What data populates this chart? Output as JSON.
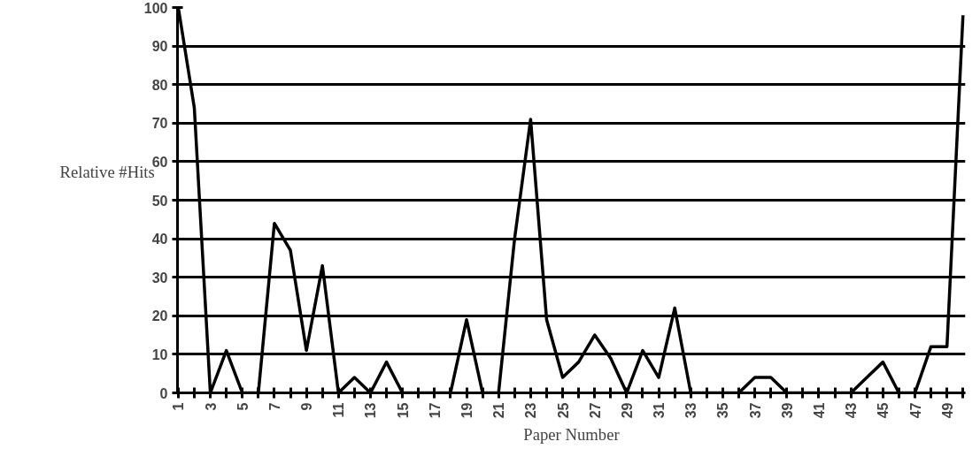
{
  "chart_data": {
    "type": "line",
    "xlabel": "Paper Number",
    "ylabel": "Relative #Hits",
    "categories": [
      "1",
      null,
      "3",
      null,
      "5",
      null,
      "7",
      null,
      "9",
      null,
      "11",
      null,
      "13",
      null,
      "15",
      null,
      "17",
      null,
      "19",
      null,
      "21",
      null,
      "23",
      null,
      "25",
      null,
      "27",
      null,
      "29",
      null,
      "31",
      null,
      "33",
      null,
      "35",
      null,
      "37",
      null,
      "39",
      null,
      "41",
      null,
      "43",
      null,
      "45",
      null,
      "47",
      null,
      "49",
      null
    ],
    "series": [
      {
        "color": "#000000",
        "values": [
          100,
          74,
          0,
          11,
          0,
          0,
          44,
          37,
          11,
          33,
          0,
          4,
          0,
          8,
          0,
          0,
          0,
          0,
          19,
          0,
          0,
          40,
          71,
          19,
          4,
          8,
          15,
          9,
          0,
          11,
          4,
          22,
          0,
          0,
          0,
          0,
          4,
          4,
          0,
          0,
          0,
          0,
          0,
          4,
          8,
          0,
          0,
          12,
          12,
          98
        ]
      }
    ],
    "ylim": [
      0,
      100
    ],
    "yticks": [
      0,
      10,
      20,
      30,
      40,
      50,
      60,
      70,
      80,
      90,
      100
    ],
    "grid": "y",
    "marker": "none",
    "line_style": "solid"
  }
}
